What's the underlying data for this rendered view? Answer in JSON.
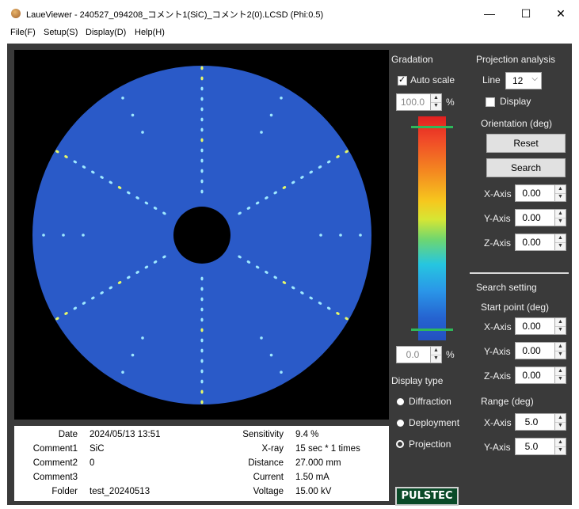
{
  "window": {
    "title": "LaueViewer - 240527_094208_コメント1(SiC)_コメント2(0).LCSD (Phi:0.5)",
    "controls": {
      "minimize": "—",
      "maximize": "☐",
      "close": "✕"
    }
  },
  "menu": [
    {
      "label": "File(F)"
    },
    {
      "label": "Setup(S)"
    },
    {
      "label": "Display(D)"
    },
    {
      "label": "Help(H)"
    }
  ],
  "info": {
    "date_label": "Date",
    "date_value": "2024/05/13  13:51",
    "comment1_label": "Comment1",
    "comment1_value": "SiC",
    "comment2_label": "Comment2",
    "comment2_value": "0",
    "comment3_label": "Comment3",
    "comment3_value": "",
    "folder_label": "Folder",
    "folder_value": "test_20240513",
    "sensitivity_label": "Sensitivity",
    "sensitivity_value": "9.4 %",
    "xray_label": "X-ray",
    "xray_value": "15 sec * 1 times",
    "distance_label": "Distance",
    "distance_value": "27.000 mm",
    "current_label": "Current",
    "current_value": "1.50 mA",
    "voltage_label": "Voltage",
    "voltage_value": "15.00 kV"
  },
  "gradation": {
    "title": "Gradation",
    "auto_scale_label": "Auto scale",
    "auto_scale_checked": true,
    "max_value": "100.0",
    "min_value": "0.0",
    "percent": "%",
    "colors": [
      "#e02020",
      "#f48a20",
      "#f6c81e",
      "#6ed670",
      "#26c6e0",
      "#2a96e8",
      "#2350c0"
    ]
  },
  "display_type": {
    "title": "Display type",
    "options": [
      "Diffraction",
      "Deployment",
      "Projection"
    ],
    "selected": "Projection"
  },
  "logo": {
    "text": "PULSTEC"
  },
  "projection": {
    "title": "Projection analysis",
    "line_label": "Line",
    "line_value": "12",
    "display_label": "Display",
    "display_checked": false,
    "orientation_title": "Orientation (deg)",
    "reset_label": "Reset",
    "search_label": "Search",
    "x_label": "X-Axis",
    "x_value": "0.00",
    "y_label": "Y-Axis",
    "y_value": "0.00",
    "z_label": "Z-Axis",
    "z_value": "0.00"
  },
  "search_setting": {
    "title": "Search setting",
    "start_title": "Start point (deg)",
    "x_label": "X-Axis",
    "x_value": "0.00",
    "y_label": "Y-Axis",
    "y_value": "0.00",
    "z_label": "Z-Axis",
    "z_value": "0.00",
    "range_title": "Range (deg)",
    "rx_label": "X-Axis",
    "rx_value": "5.0",
    "ry_label": "Y-Axis",
    "ry_value": "5.0"
  },
  "image_colors": {
    "detector": "#2a5ac8",
    "spot": "#9ee8ff",
    "spot_bright": "#e6f86a",
    "background": "#000000"
  }
}
